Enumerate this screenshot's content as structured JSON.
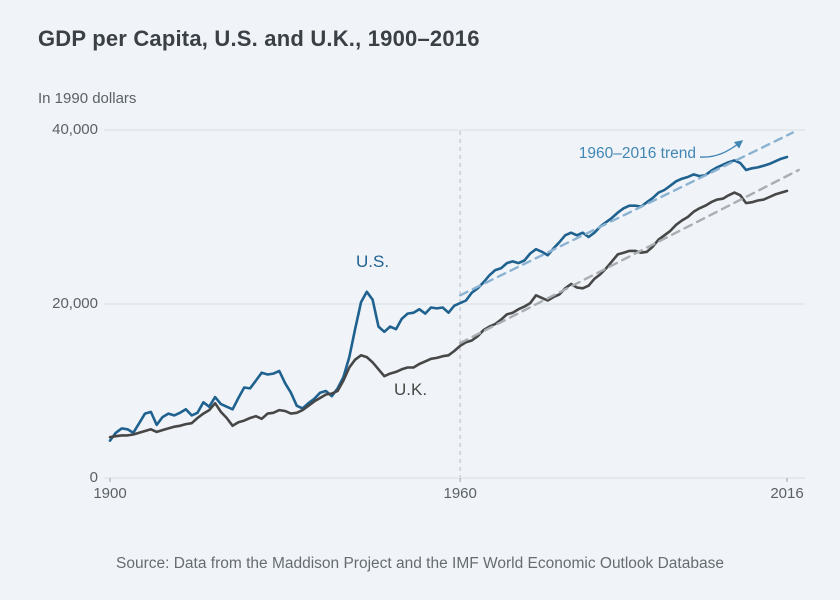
{
  "page": {
    "title": "GDP per Capita, U.S. and U.K., 1900–2016",
    "subtitle": "In 1990 dollars",
    "source": "Source: Data from the Maddison Project and the IMF World Economic Outlook Database"
  },
  "annotations": {
    "us_label": "U.S.",
    "uk_label": "U.K.",
    "trend_label": "1960–2016 trend"
  },
  "colors": {
    "background": "#f0f4f8",
    "title_text": "#3a4046",
    "axis_text": "#5b6167",
    "gridline": "#d9dee3",
    "us_line": "#1f618f",
    "uk_line": "#474747",
    "us_trend_line": "#8cb2d2",
    "uk_trend_line": "#a9aeb3",
    "trend_label_text": "#4286b4",
    "reference_line": "#c6ccd2",
    "source_text": "#666c72"
  },
  "chart_data": {
    "type": "line",
    "title": "GDP per Capita, U.S. and U.K., 1900–2016",
    "ylabel": "In 1990 dollars",
    "xlim": [
      1900,
      2018
    ],
    "ylim": [
      0,
      40000
    ],
    "grid": "horizontal",
    "y_ticks": [
      {
        "label": "0",
        "value": 0
      },
      {
        "label": "20,000",
        "value": 20000
      },
      {
        "label": "40,000",
        "value": 40000
      }
    ],
    "x_ticks": [
      {
        "label": "1900",
        "value": 1900
      },
      {
        "label": "1960",
        "value": 1960
      },
      {
        "label": "2016",
        "value": 2016
      }
    ],
    "reference_line_year": 1960,
    "series": [
      {
        "name": "U.S.",
        "role": "us",
        "style": "solid",
        "points": [
          [
            1900,
            4300
          ],
          [
            1901,
            5200
          ],
          [
            1902,
            5700
          ],
          [
            1903,
            5600
          ],
          [
            1904,
            5200
          ],
          [
            1905,
            6300
          ],
          [
            1906,
            7400
          ],
          [
            1907,
            7600
          ],
          [
            1908,
            6100
          ],
          [
            1909,
            7000
          ],
          [
            1910,
            7400
          ],
          [
            1911,
            7200
          ],
          [
            1912,
            7500
          ],
          [
            1913,
            7900
          ],
          [
            1914,
            7200
          ],
          [
            1915,
            7500
          ],
          [
            1916,
            8700
          ],
          [
            1917,
            8200
          ],
          [
            1918,
            9300
          ],
          [
            1919,
            8500
          ],
          [
            1920,
            8200
          ],
          [
            1921,
            7900
          ],
          [
            1922,
            9200
          ],
          [
            1923,
            10400
          ],
          [
            1924,
            10300
          ],
          [
            1925,
            11200
          ],
          [
            1926,
            12100
          ],
          [
            1927,
            11900
          ],
          [
            1928,
            12000
          ],
          [
            1929,
            12300
          ],
          [
            1930,
            10900
          ],
          [
            1931,
            9800
          ],
          [
            1932,
            8300
          ],
          [
            1933,
            8000
          ],
          [
            1934,
            8600
          ],
          [
            1935,
            9100
          ],
          [
            1936,
            9800
          ],
          [
            1937,
            10000
          ],
          [
            1938,
            9400
          ],
          [
            1939,
            10300
          ],
          [
            1940,
            11600
          ],
          [
            1941,
            13900
          ],
          [
            1942,
            17100
          ],
          [
            1943,
            20200
          ],
          [
            1944,
            21400
          ],
          [
            1945,
            20500
          ],
          [
            1946,
            17400
          ],
          [
            1947,
            16800
          ],
          [
            1948,
            17400
          ],
          [
            1949,
            17100
          ],
          [
            1950,
            18300
          ],
          [
            1951,
            18900
          ],
          [
            1952,
            19000
          ],
          [
            1953,
            19400
          ],
          [
            1954,
            18900
          ],
          [
            1955,
            19600
          ],
          [
            1956,
            19500
          ],
          [
            1957,
            19600
          ],
          [
            1958,
            19000
          ],
          [
            1959,
            19800
          ],
          [
            1960,
            20100
          ],
          [
            1961,
            20400
          ],
          [
            1962,
            21300
          ],
          [
            1963,
            21800
          ],
          [
            1964,
            22500
          ],
          [
            1965,
            23300
          ],
          [
            1966,
            23900
          ],
          [
            1967,
            24100
          ],
          [
            1968,
            24700
          ],
          [
            1969,
            24900
          ],
          [
            1970,
            24700
          ],
          [
            1971,
            25000
          ],
          [
            1972,
            25800
          ],
          [
            1973,
            26300
          ],
          [
            1974,
            26000
          ],
          [
            1975,
            25600
          ],
          [
            1976,
            26400
          ],
          [
            1977,
            27100
          ],
          [
            1978,
            27900
          ],
          [
            1979,
            28200
          ],
          [
            1980,
            27900
          ],
          [
            1981,
            28200
          ],
          [
            1982,
            27700
          ],
          [
            1983,
            28200
          ],
          [
            1984,
            28900
          ],
          [
            1985,
            29400
          ],
          [
            1986,
            29900
          ],
          [
            1987,
            30500
          ],
          [
            1988,
            31000
          ],
          [
            1989,
            31300
          ],
          [
            1990,
            31300
          ],
          [
            1991,
            31200
          ],
          [
            1992,
            31700
          ],
          [
            1993,
            32200
          ],
          [
            1994,
            32800
          ],
          [
            1995,
            33100
          ],
          [
            1996,
            33600
          ],
          [
            1997,
            34100
          ],
          [
            1998,
            34400
          ],
          [
            1999,
            34600
          ],
          [
            2000,
            34900
          ],
          [
            2001,
            34700
          ],
          [
            2002,
            34800
          ],
          [
            2003,
            35300
          ],
          [
            2004,
            35700
          ],
          [
            2005,
            36000
          ],
          [
            2006,
            36300
          ],
          [
            2007,
            36500
          ],
          [
            2008,
            36200
          ],
          [
            2009,
            35400
          ],
          [
            2010,
            35600
          ],
          [
            2011,
            35700
          ],
          [
            2012,
            35900
          ],
          [
            2013,
            36100
          ],
          [
            2014,
            36400
          ],
          [
            2015,
            36700
          ],
          [
            2016,
            36900
          ]
        ]
      },
      {
        "name": "U.K.",
        "role": "uk",
        "style": "solid",
        "points": [
          [
            1900,
            4700
          ],
          [
            1901,
            4800
          ],
          [
            1902,
            4900
          ],
          [
            1903,
            4900
          ],
          [
            1904,
            5000
          ],
          [
            1905,
            5200
          ],
          [
            1906,
            5400
          ],
          [
            1907,
            5600
          ],
          [
            1908,
            5300
          ],
          [
            1909,
            5500
          ],
          [
            1910,
            5700
          ],
          [
            1911,
            5900
          ],
          [
            1912,
            6000
          ],
          [
            1913,
            6200
          ],
          [
            1914,
            6300
          ],
          [
            1915,
            6900
          ],
          [
            1916,
            7400
          ],
          [
            1917,
            7800
          ],
          [
            1918,
            8600
          ],
          [
            1919,
            7600
          ],
          [
            1920,
            6900
          ],
          [
            1921,
            6000
          ],
          [
            1922,
            6400
          ],
          [
            1923,
            6600
          ],
          [
            1924,
            6900
          ],
          [
            1925,
            7100
          ],
          [
            1926,
            6800
          ],
          [
            1927,
            7400
          ],
          [
            1928,
            7500
          ],
          [
            1929,
            7800
          ],
          [
            1930,
            7700
          ],
          [
            1931,
            7400
          ],
          [
            1932,
            7500
          ],
          [
            1933,
            7800
          ],
          [
            1934,
            8300
          ],
          [
            1935,
            8800
          ],
          [
            1936,
            9200
          ],
          [
            1937,
            9600
          ],
          [
            1938,
            9700
          ],
          [
            1939,
            10000
          ],
          [
            1940,
            11200
          ],
          [
            1941,
            12700
          ],
          [
            1942,
            13600
          ],
          [
            1943,
            14100
          ],
          [
            1944,
            13900
          ],
          [
            1945,
            13300
          ],
          [
            1946,
            12500
          ],
          [
            1947,
            11700
          ],
          [
            1948,
            12000
          ],
          [
            1949,
            12200
          ],
          [
            1950,
            12500
          ],
          [
            1951,
            12700
          ],
          [
            1952,
            12700
          ],
          [
            1953,
            13100
          ],
          [
            1954,
            13400
          ],
          [
            1955,
            13700
          ],
          [
            1956,
            13800
          ],
          [
            1957,
            14000
          ],
          [
            1958,
            14100
          ],
          [
            1959,
            14600
          ],
          [
            1960,
            15200
          ],
          [
            1961,
            15600
          ],
          [
            1962,
            15800
          ],
          [
            1963,
            16300
          ],
          [
            1964,
            17000
          ],
          [
            1965,
            17400
          ],
          [
            1966,
            17700
          ],
          [
            1967,
            18200
          ],
          [
            1968,
            18800
          ],
          [
            1969,
            19000
          ],
          [
            1970,
            19400
          ],
          [
            1971,
            19700
          ],
          [
            1972,
            20100
          ],
          [
            1973,
            21000
          ],
          [
            1974,
            20700
          ],
          [
            1975,
            20400
          ],
          [
            1976,
            20800
          ],
          [
            1977,
            21100
          ],
          [
            1978,
            21800
          ],
          [
            1979,
            22300
          ],
          [
            1980,
            21900
          ],
          [
            1981,
            21800
          ],
          [
            1982,
            22100
          ],
          [
            1983,
            22900
          ],
          [
            1984,
            23400
          ],
          [
            1985,
            24100
          ],
          [
            1986,
            24900
          ],
          [
            1987,
            25700
          ],
          [
            1988,
            25900
          ],
          [
            1989,
            26100
          ],
          [
            1990,
            26100
          ],
          [
            1991,
            25900
          ],
          [
            1992,
            26000
          ],
          [
            1993,
            26600
          ],
          [
            1994,
            27400
          ],
          [
            1995,
            27900
          ],
          [
            1996,
            28400
          ],
          [
            1997,
            29100
          ],
          [
            1998,
            29600
          ],
          [
            1999,
            30000
          ],
          [
            2000,
            30600
          ],
          [
            2001,
            31000
          ],
          [
            2002,
            31300
          ],
          [
            2003,
            31700
          ],
          [
            2004,
            32000
          ],
          [
            2005,
            32100
          ],
          [
            2006,
            32500
          ],
          [
            2007,
            32800
          ],
          [
            2008,
            32500
          ],
          [
            2009,
            31600
          ],
          [
            2010,
            31700
          ],
          [
            2011,
            31900
          ],
          [
            2012,
            32000
          ],
          [
            2013,
            32300
          ],
          [
            2014,
            32600
          ],
          [
            2015,
            32800
          ],
          [
            2016,
            33000
          ]
        ]
      },
      {
        "name": "U.S. 1960–2016 trend",
        "role": "us_trend",
        "style": "dashed",
        "points": [
          [
            1960,
            21000
          ],
          [
            2017,
            39700
          ]
        ]
      },
      {
        "name": "U.K. 1960–2016 trend",
        "role": "uk_trend",
        "style": "dashed",
        "points": [
          [
            1960,
            15500
          ],
          [
            2018,
            35400
          ]
        ]
      }
    ]
  }
}
